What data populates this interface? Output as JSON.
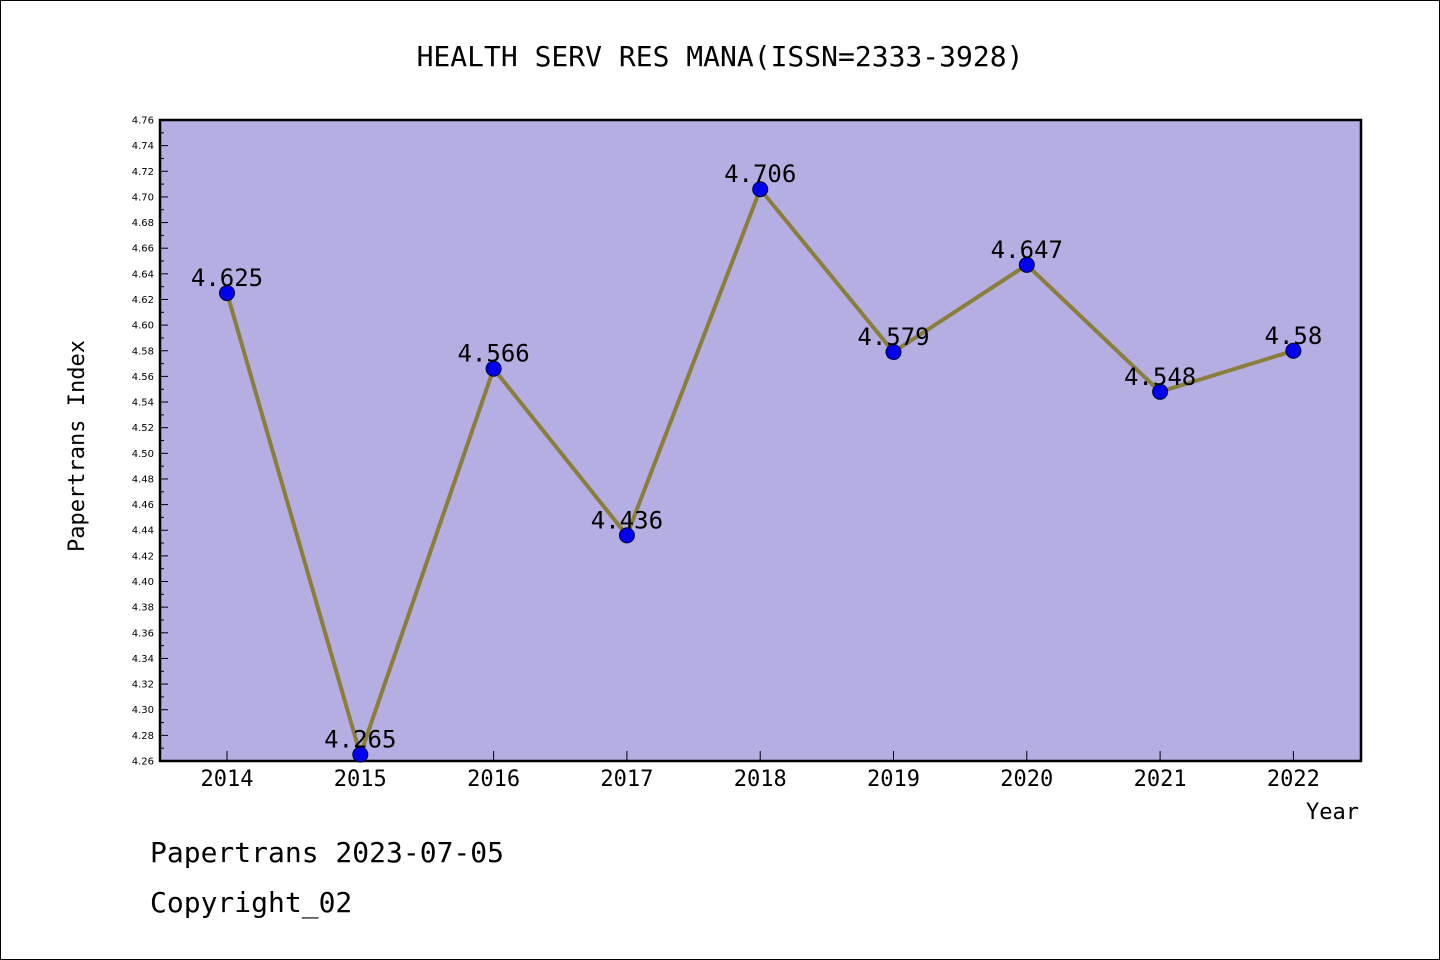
{
  "chart_data": {
    "type": "line",
    "title": "HEALTH SERV RES MANA(ISSN=2333-3928)",
    "xlabel": "Year",
    "ylabel": "Papertrans Index",
    "categories": [
      "2014",
      "2015",
      "2016",
      "2017",
      "2018",
      "2019",
      "2020",
      "2021",
      "2022"
    ],
    "series": [
      {
        "values": [
          4.625,
          4.265,
          4.566,
          4.436,
          4.706,
          4.579,
          4.647,
          4.548,
          4.58
        ]
      }
    ],
    "data_labels": [
      "4.625",
      "4.265",
      "4.566",
      "4.436",
      "4.706",
      "4.579",
      "4.647",
      "4.548",
      "4.58"
    ],
    "ylim": [
      4.26,
      4.76
    ],
    "ytick_step": 0.02,
    "grid": false,
    "colors": {
      "plot_background": "#b5aee2",
      "line": "#8b7d3a",
      "marker": "#0000ee"
    }
  },
  "footer": {
    "date": "Papertrans 2023-07-05",
    "copyright": "Copyright_02"
  }
}
